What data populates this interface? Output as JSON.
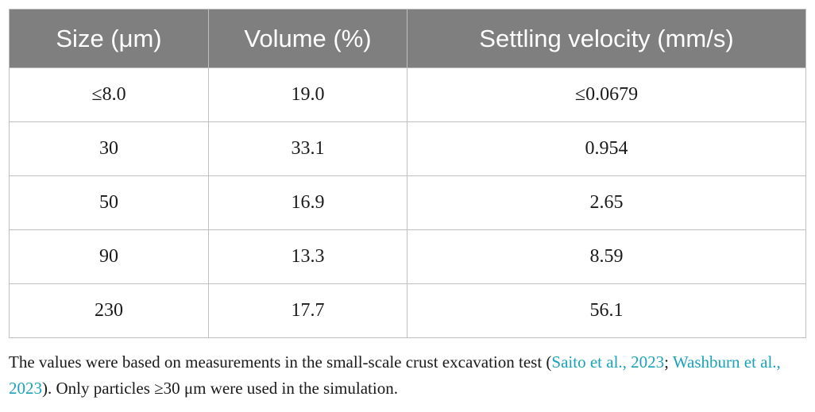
{
  "table": {
    "headers": [
      "Size (μm)",
      "Volume (%)",
      "Settling velocity (mm/s)"
    ],
    "rows": [
      [
        "≤8.0",
        "19.0",
        "≤0.0679"
      ],
      [
        "30",
        "33.1",
        "0.954"
      ],
      [
        "50",
        "16.9",
        "2.65"
      ],
      [
        "90",
        "13.3",
        "8.59"
      ],
      [
        "230",
        "17.7",
        "56.1"
      ]
    ]
  },
  "footnote": {
    "text_1": "The values were based on measurements in the small-scale crust excavation test (",
    "cite_1": "Saito et al., 2023",
    "sep": "; ",
    "cite_2": "Washburn et al., 2023",
    "text_2": "). Only particles ≥30 μm were used in the simulation."
  },
  "colors": {
    "header_bg": "#7f7f7f",
    "header_text": "#ffffff",
    "cite_link": "#1aa3b8",
    "border": "#bfbfbf"
  }
}
